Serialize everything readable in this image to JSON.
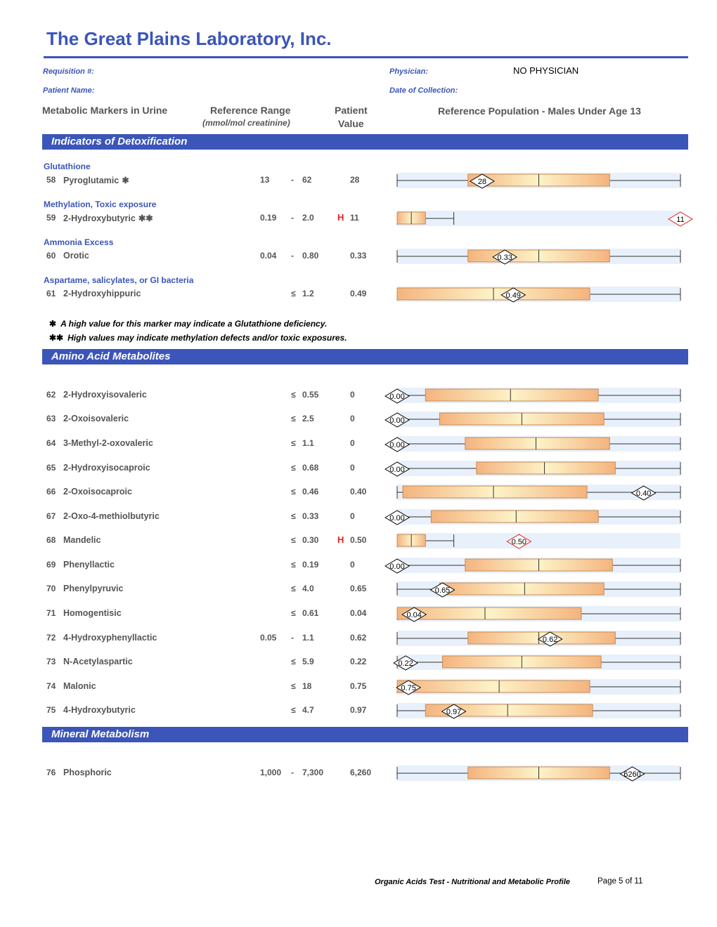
{
  "header": {
    "lab_name": "The Great Plains Laboratory, Inc.",
    "requisition_label": "Requisition #:",
    "patient_name_label": "Patient Name:",
    "physician_label": "Physician:",
    "physician_value": "NO PHYSICIAN",
    "collection_date_label": "Date of Collection:"
  },
  "columns": {
    "markers": "Metabolic Markers in Urine",
    "reference_range": "Reference Range",
    "reference_units": "(mmol/mol creatinine)",
    "patient_line1": "Patient",
    "patient_line2": "Value",
    "population": "Reference Population - Males Under Age 13"
  },
  "colors": {
    "brand_blue": "#3b55b9",
    "high_flag": "#e02020",
    "row_band": "#e8f0fb",
    "box_orange": "#f4b47e",
    "box_cream": "#fdf3c8"
  },
  "sections": {
    "detox": "Indicators of Detoxification",
    "amino": "Amino Acid Metabolites",
    "mineral": "Mineral Metabolism"
  },
  "categories": {
    "glutathione": "Glutathione",
    "methylation": "Methylation, Toxic exposure",
    "ammonia": "Ammonia Excess",
    "aspartame": "Aspartame, salicylates, or GI bacteria"
  },
  "footnotes": {
    "single_star": "✱",
    "single_text": "A high value for this marker may indicate a Glutathione deficiency.",
    "double_star": "✱✱",
    "double_text": "High values may indicate methylation defects and/or toxic exposures."
  },
  "rows": [
    {
      "num": "58",
      "name": "Pyroglutamic",
      "mark": "✱",
      "ref_low": "13",
      "ref_sep": "-",
      "ref_high": "62",
      "flag": "",
      "value": "28",
      "marker_label": "28",
      "plot": {
        "whisker_min": 0.0,
        "box_low": 0.25,
        "median": 0.5,
        "box_high": 0.75,
        "whisker_max": 1.0,
        "marker": 0.3,
        "high": false
      }
    },
    {
      "num": "59",
      "name": "2-Hydroxybutyric",
      "mark": "✱✱",
      "ref_low": "0.19",
      "ref_sep": "-",
      "ref_high": "2.0",
      "flag": "H",
      "value": "11",
      "marker_label": "11",
      "plot": {
        "whisker_min": 0.0,
        "box_low": 0.0,
        "median": 0.05,
        "box_high": 0.1,
        "whisker_max": 0.2,
        "marker": 1.0,
        "high": true
      }
    },
    {
      "num": "60",
      "name": "Orotic",
      "mark": "",
      "ref_low": "0.04",
      "ref_sep": "-",
      "ref_high": "0.80",
      "flag": "",
      "value": "0.33",
      "marker_label": "0.33",
      "plot": {
        "whisker_min": 0.0,
        "box_low": 0.25,
        "median": 0.5,
        "box_high": 0.75,
        "whisker_max": 1.0,
        "marker": 0.38,
        "high": false
      }
    },
    {
      "num": "61",
      "name": "2-Hydroxyhippuric",
      "mark": "",
      "ref_low": "",
      "ref_sep": "≤",
      "ref_high": "1.2",
      "flag": "",
      "value": "0.49",
      "marker_label": "0.49",
      "plot": {
        "whisker_min": 0.0,
        "box_low": 0.0,
        "median": 0.34,
        "box_high": 0.68,
        "whisker_max": 1.0,
        "marker": 0.41,
        "high": false
      }
    },
    {
      "num": "62",
      "name": "2-Hydroxyisovaleric",
      "ref_low": "",
      "ref_sep": "≤",
      "ref_high": "0.55",
      "flag": "",
      "value": "0",
      "marker_label": "0.00",
      "plot": {
        "whisker_min": 0.0,
        "box_low": 0.1,
        "median": 0.4,
        "box_high": 0.71,
        "whisker_max": 1.0,
        "marker": 0.0,
        "high": false
      }
    },
    {
      "num": "63",
      "name": "2-Oxoisovaleric",
      "ref_low": "",
      "ref_sep": "≤",
      "ref_high": "2.5",
      "flag": "",
      "value": "0",
      "marker_label": "0.00",
      "plot": {
        "whisker_min": 0.0,
        "box_low": 0.15,
        "median": 0.44,
        "box_high": 0.73,
        "whisker_max": 1.0,
        "marker": 0.0,
        "high": false
      }
    },
    {
      "num": "64",
      "name": "3-Methyl-2-oxovaleric",
      "ref_low": "",
      "ref_sep": "≤",
      "ref_high": "1.1",
      "flag": "",
      "value": "0",
      "marker_label": "0.00",
      "plot": {
        "whisker_min": 0.0,
        "box_low": 0.24,
        "median": 0.49,
        "box_high": 0.75,
        "whisker_max": 1.0,
        "marker": 0.0,
        "high": false
      }
    },
    {
      "num": "65",
      "name": "2-Hydroxyisocaproic",
      "ref_low": "",
      "ref_sep": "≤",
      "ref_high": "0.68",
      "flag": "",
      "value": "0",
      "marker_label": "0.00",
      "plot": {
        "whisker_min": 0.0,
        "box_low": 0.28,
        "median": 0.52,
        "box_high": 0.77,
        "whisker_max": 1.0,
        "marker": 0.0,
        "high": false
      }
    },
    {
      "num": "66",
      "name": "2-Oxoisocaproic",
      "ref_low": "",
      "ref_sep": "≤",
      "ref_high": "0.46",
      "flag": "",
      "value": "0.40",
      "marker_label": "0.40",
      "plot": {
        "whisker_min": 0.0,
        "box_low": 0.02,
        "median": 0.34,
        "box_high": 0.67,
        "whisker_max": 1.0,
        "marker": 0.87,
        "high": false
      }
    },
    {
      "num": "67",
      "name": "2-Oxo-4-methiolbutyric",
      "ref_low": "",
      "ref_sep": "≤",
      "ref_high": "0.33",
      "flag": "",
      "value": "0",
      "marker_label": "0.00",
      "plot": {
        "whisker_min": 0.0,
        "box_low": 0.12,
        "median": 0.42,
        "box_high": 0.71,
        "whisker_max": 1.0,
        "marker": 0.0,
        "high": false
      }
    },
    {
      "num": "68",
      "name": "Mandelic",
      "ref_low": "",
      "ref_sep": "≤",
      "ref_high": "0.30",
      "flag": "H",
      "value": "0.50",
      "marker_label": "0.50",
      "plot": {
        "whisker_min": 0.0,
        "box_low": 0.0,
        "median": 0.05,
        "box_high": 0.1,
        "whisker_max": 0.2,
        "marker": 0.43,
        "high": true
      }
    },
    {
      "num": "69",
      "name": "Phenyllactic",
      "ref_low": "",
      "ref_sep": "≤",
      "ref_high": "0.19",
      "flag": "",
      "value": "0",
      "marker_label": "0.00",
      "plot": {
        "whisker_min": 0.0,
        "box_low": 0.24,
        "median": 0.5,
        "box_high": 0.76,
        "whisker_max": 1.0,
        "marker": 0.0,
        "high": false
      }
    },
    {
      "num": "70",
      "name": "Phenylpyruvic",
      "ref_low": "",
      "ref_sep": "≤",
      "ref_high": "4.0",
      "flag": "",
      "value": "0.65",
      "marker_label": "0.65",
      "plot": {
        "whisker_min": 0.0,
        "box_low": 0.15,
        "median": 0.45,
        "box_high": 0.73,
        "whisker_max": 1.0,
        "marker": 0.16,
        "high": false
      }
    },
    {
      "num": "71",
      "name": "Homogentisic",
      "ref_low": "",
      "ref_sep": "≤",
      "ref_high": "0.61",
      "flag": "",
      "value": "0.04",
      "marker_label": "0.04",
      "plot": {
        "whisker_min": 0.0,
        "box_low": 0.0,
        "median": 0.31,
        "box_high": 0.65,
        "whisker_max": 1.0,
        "marker": 0.06,
        "high": false
      }
    },
    {
      "num": "72",
      "name": "4-Hydroxyphenyllactic",
      "ref_low": "0.05",
      "ref_sep": "-",
      "ref_high": "1.1",
      "flag": "",
      "value": "0.62",
      "marker_label": "0.62",
      "plot": {
        "whisker_min": 0.0,
        "box_low": 0.25,
        "median": 0.5,
        "box_high": 0.77,
        "whisker_max": 1.0,
        "marker": 0.54,
        "high": false
      }
    },
    {
      "num": "73",
      "name": "N-Acetylaspartic",
      "ref_low": "",
      "ref_sep": "≤",
      "ref_high": "5.9",
      "flag": "",
      "value": "0.22",
      "marker_label": "0.22",
      "plot": {
        "whisker_min": 0.0,
        "box_low": 0.16,
        "median": 0.44,
        "box_high": 0.72,
        "whisker_max": 1.0,
        "marker": 0.03,
        "high": false
      }
    },
    {
      "num": "74",
      "name": "Malonic",
      "ref_low": "",
      "ref_sep": "≤",
      "ref_high": "18",
      "flag": "",
      "value": "0.75",
      "marker_label": "0.75",
      "plot": {
        "whisker_min": 0.0,
        "box_low": 0.0,
        "median": 0.36,
        "box_high": 0.68,
        "whisker_max": 1.0,
        "marker": 0.04,
        "high": false
      }
    },
    {
      "num": "75",
      "name": "4-Hydroxybutyric",
      "ref_low": "",
      "ref_sep": "≤",
      "ref_high": "4.7",
      "flag": "",
      "value": "0.97",
      "marker_label": "0.97",
      "plot": {
        "whisker_min": 0.0,
        "box_low": 0.1,
        "median": 0.39,
        "box_high": 0.69,
        "whisker_max": 1.0,
        "marker": 0.2,
        "high": false
      }
    },
    {
      "num": "76",
      "name": "Phosphoric",
      "ref_low": "1,000",
      "ref_sep": "-",
      "ref_high": "7,300",
      "flag": "",
      "value": "6,260",
      "marker_label": "6260",
      "plot": {
        "whisker_min": 0.0,
        "box_low": 0.25,
        "median": 0.5,
        "box_high": 0.75,
        "whisker_max": 1.0,
        "marker": 0.83,
        "high": false
      }
    }
  ],
  "footer": {
    "title": "Organic Acids Test - Nutritional and Metabolic Profile",
    "page": "Page 5 of 11"
  }
}
